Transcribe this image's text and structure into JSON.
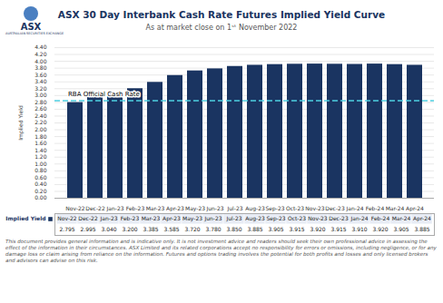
{
  "chart_data": {
    "type": "bar",
    "title": "ASX 30 Day Interbank Cash Rate Futures Implied Yield Curve",
    "subtitle": "As at market close on 1ˢᵗ November 2022",
    "ylabel": "Implied Yield",
    "categories": [
      "Nov-22",
      "Dec-22",
      "Jan-23",
      "Feb-23",
      "Mar-23",
      "Apr-23",
      "May-23",
      "Jun-23",
      "Jul-23",
      "Aug-23",
      "Sep-23",
      "Oct-23",
      "Nov-23",
      "Dec-23",
      "Jan-24",
      "Feb-24",
      "Mar-24",
      "Apr-24"
    ],
    "values": [
      2.795,
      2.995,
      3.04,
      3.2,
      3.385,
      3.585,
      3.72,
      3.78,
      3.85,
      3.885,
      3.905,
      3.915,
      3.92,
      3.915,
      3.91,
      3.92,
      3.905,
      3.885
    ],
    "value_labels": [
      "2.795",
      "2.995",
      "3.040",
      "3.200",
      "3.385",
      "3.585",
      "3.720",
      "3.780",
      "3.850",
      "3.885",
      "3.905",
      "3.915",
      "3.920",
      "3.915",
      "3.910",
      "3.920",
      "3.905",
      "3.885"
    ],
    "color": "#1a3461",
    "ylim": [
      0.0,
      4.4
    ],
    "yticks": [
      {
        "value": 0.0,
        "label": "0.00"
      },
      {
        "value": 0.2,
        "label": "0.20"
      },
      {
        "value": 0.4,
        "label": "0.40"
      },
      {
        "value": 0.6,
        "label": "0.60"
      },
      {
        "value": 0.8,
        "label": "0.80"
      },
      {
        "value": 1.0,
        "label": "1.00"
      },
      {
        "value": 1.2,
        "label": "1.20"
      },
      {
        "value": 1.4,
        "label": "1.40"
      },
      {
        "value": 1.6,
        "label": "1.60"
      },
      {
        "value": 1.8,
        "label": "1.80"
      },
      {
        "value": 2.0,
        "label": "2.00"
      },
      {
        "value": 2.2,
        "label": "2.20"
      },
      {
        "value": 2.4,
        "label": "2.40"
      },
      {
        "value": 2.6,
        "label": "2.60"
      },
      {
        "value": 2.8,
        "label": "2.80"
      },
      {
        "value": 3.0,
        "label": "3.00"
      },
      {
        "value": 3.2,
        "label": "3.20"
      },
      {
        "value": 3.4,
        "label": "3.40"
      },
      {
        "value": 3.6,
        "label": "3.60"
      },
      {
        "value": 3.8,
        "label": "3.80"
      },
      {
        "value": 4.0,
        "label": "4.00"
      },
      {
        "value": 4.2,
        "label": "4.20"
      },
      {
        "value": 4.4,
        "label": "4.40"
      }
    ],
    "grid": true,
    "hlines": [
      {
        "value": 2.85,
        "label": "RBA Official Cash Rate",
        "color": "#4dd0e1",
        "line_style": "dashed"
      }
    ],
    "table_label": "Implied Yield",
    "footnote": "This document provides general information and is indicative only. It is not investment advice and readers should seek their own professional advice in assessing the effect of the information in their circumstances. ASX Limited and its related corporations accept no responsibility for errors or omissions, including negligence, or for any damage loss or claim arising from reliance on the information. Futures and options trading involves the potential for both profits and losses and only licensed brokers and advisors can advise on this risk.",
    "logo": "ASX",
    "logo_caption": "AUSTRALIAN SECURITIES EXCHANGE"
  }
}
